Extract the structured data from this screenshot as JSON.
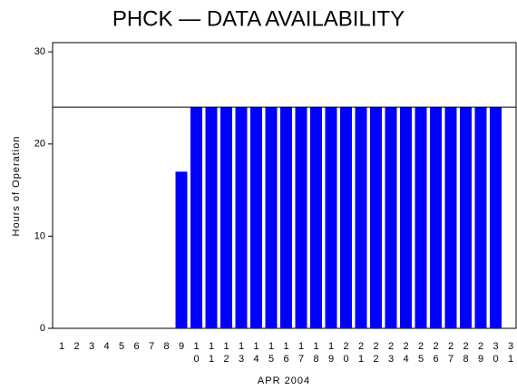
{
  "chart_data": {
    "type": "bar",
    "title": "PHCK — DATA AVAILABILITY",
    "x_label": "APR 2004",
    "y_label": "Hours of Operation",
    "categories": [
      "1",
      "2",
      "3",
      "4",
      "5",
      "6",
      "7",
      "8",
      "9",
      "10",
      "11",
      "12",
      "13",
      "14",
      "15",
      "16",
      "17",
      "18",
      "19",
      "20",
      "21",
      "22",
      "23",
      "24",
      "25",
      "26",
      "27",
      "28",
      "29",
      "30",
      "31"
    ],
    "values": [
      0,
      0,
      0,
      0,
      0,
      0,
      0,
      0,
      17,
      24,
      24,
      24,
      24,
      24,
      24,
      24,
      24,
      24,
      24,
      24,
      24,
      24,
      24,
      24,
      24,
      24,
      24,
      24,
      24,
      24,
      0
    ],
    "color": "#0000ff",
    "ylim": [
      0,
      31
    ],
    "yticks": [
      0,
      10,
      20,
      30
    ],
    "reference_line": 24
  }
}
